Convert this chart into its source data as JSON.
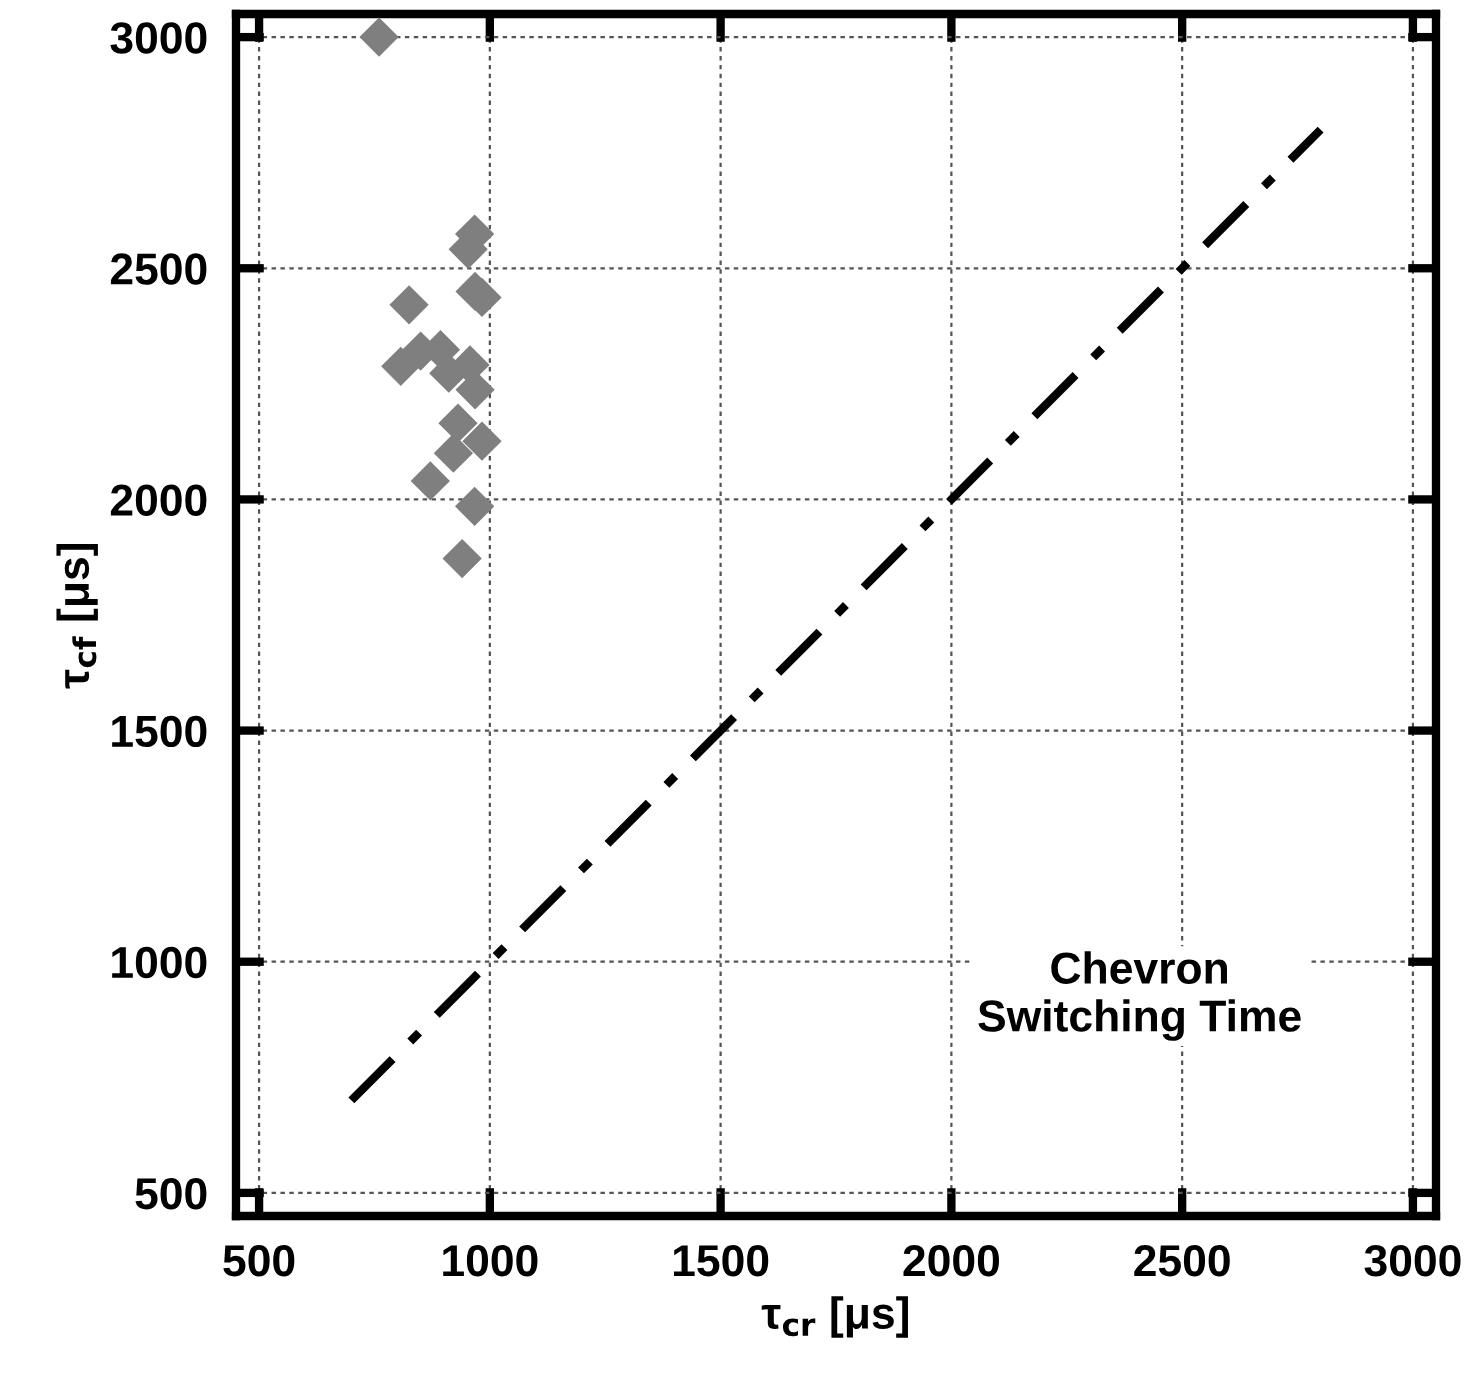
{
  "chart_data": {
    "type": "scatter",
    "xlabel": "τ$_{cr}$ [μs]",
    "ylabel": "τ$_{cf}$ [μs]",
    "xlim": [
      450,
      3050
    ],
    "ylim": [
      450,
      3050
    ],
    "xticks": [
      500,
      1000,
      1500,
      2000,
      2500,
      3000
    ],
    "yticks": [
      500,
      1000,
      1500,
      2000,
      2500,
      3000
    ],
    "grid": true,
    "legend": false,
    "series": [
      {
        "marker": "diamond",
        "color": "#7f7f7f",
        "x": [
          760,
          967,
          953,
          968,
          983,
          825,
          850,
          807,
          893,
          911,
          957,
          968,
          931,
          983,
          921,
          871,
          967,
          940
        ],
        "values": [
          3000,
          2574,
          2541,
          2450,
          2437,
          2421,
          2321,
          2288,
          2324,
          2273,
          2291,
          2237,
          2165,
          2126,
          2100,
          2040,
          1985,
          1872
        ]
      },
      {
        "type": "line",
        "line_style": "dashdot",
        "color": "#000000",
        "x": [
          700,
          2800
        ],
        "values": [
          700,
          2800
        ]
      }
    ],
    "annotations": [
      "Chevron\nSwitching Time"
    ]
  }
}
